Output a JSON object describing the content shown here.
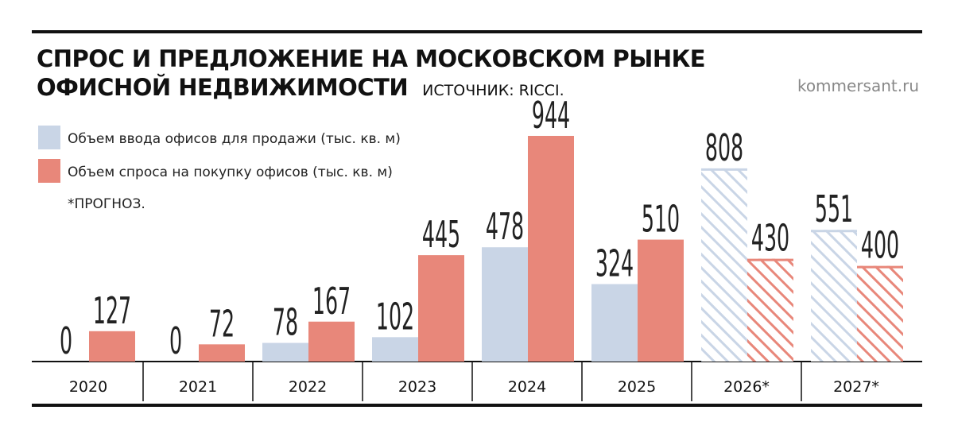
{
  "chart_data": {
    "type": "bar",
    "title": "СПРОС И ПРЕДЛОЖЕНИЕ НА МОСКОВСКОМ РЫНКЕ ОФИСНОЙ НЕДВИЖИМОСТИ",
    "source": "ИСТОЧНИК: RICCI.",
    "site": "kommersant.ru",
    "note": "*ПРОГНОЗ.",
    "categories": [
      "2020",
      "2021",
      "2022",
      "2023",
      "2024",
      "2025",
      "2026*",
      "2027*"
    ],
    "series": [
      {
        "name": "Объем ввода офисов для продажи (тыс. кв. м)",
        "color": "#c9d5e6",
        "values": [
          0,
          0,
          78,
          102,
          478,
          324,
          808,
          551
        ]
      },
      {
        "name": "Объем спроса на покупку офисов (тыс. кв. м)",
        "color": "#e8877a",
        "values": [
          127,
          72,
          167,
          445,
          944,
          510,
          430,
          400
        ]
      }
    ]
  }
}
